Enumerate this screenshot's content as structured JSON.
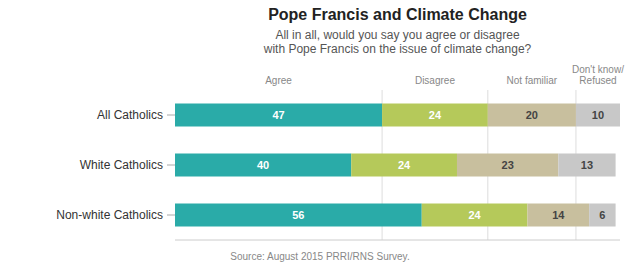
{
  "chart_data": {
    "type": "bar",
    "orientation": "horizontal",
    "stacked": true,
    "data_labels": true,
    "title": "Pope Francis and Climate Change",
    "subtitle": "All in all, would you say you agree or disagree\nwith Pope Francis on the issue of climate change?",
    "categories": [
      "All Catholics",
      "White Catholics",
      "Non-white Catholics"
    ],
    "series": [
      {
        "name": "Agree",
        "color": "#2aaba8",
        "values": [
          47,
          40,
          56
        ]
      },
      {
        "name": "Disagree",
        "color": "#b5c95a",
        "values": [
          24,
          24,
          24
        ]
      },
      {
        "name": "Not familiar",
        "color": "#c8bf9e",
        "values": [
          20,
          23,
          14
        ]
      },
      {
        "name": "Don't know/\nRefused",
        "color": "#c8c8c8",
        "values": [
          10,
          13,
          6
        ]
      }
    ],
    "xlim": [
      0,
      101
    ],
    "tick_labels": false,
    "grid": false,
    "annotations": [
      "Source: August 2015 PRRI/RNS Survey."
    ]
  }
}
